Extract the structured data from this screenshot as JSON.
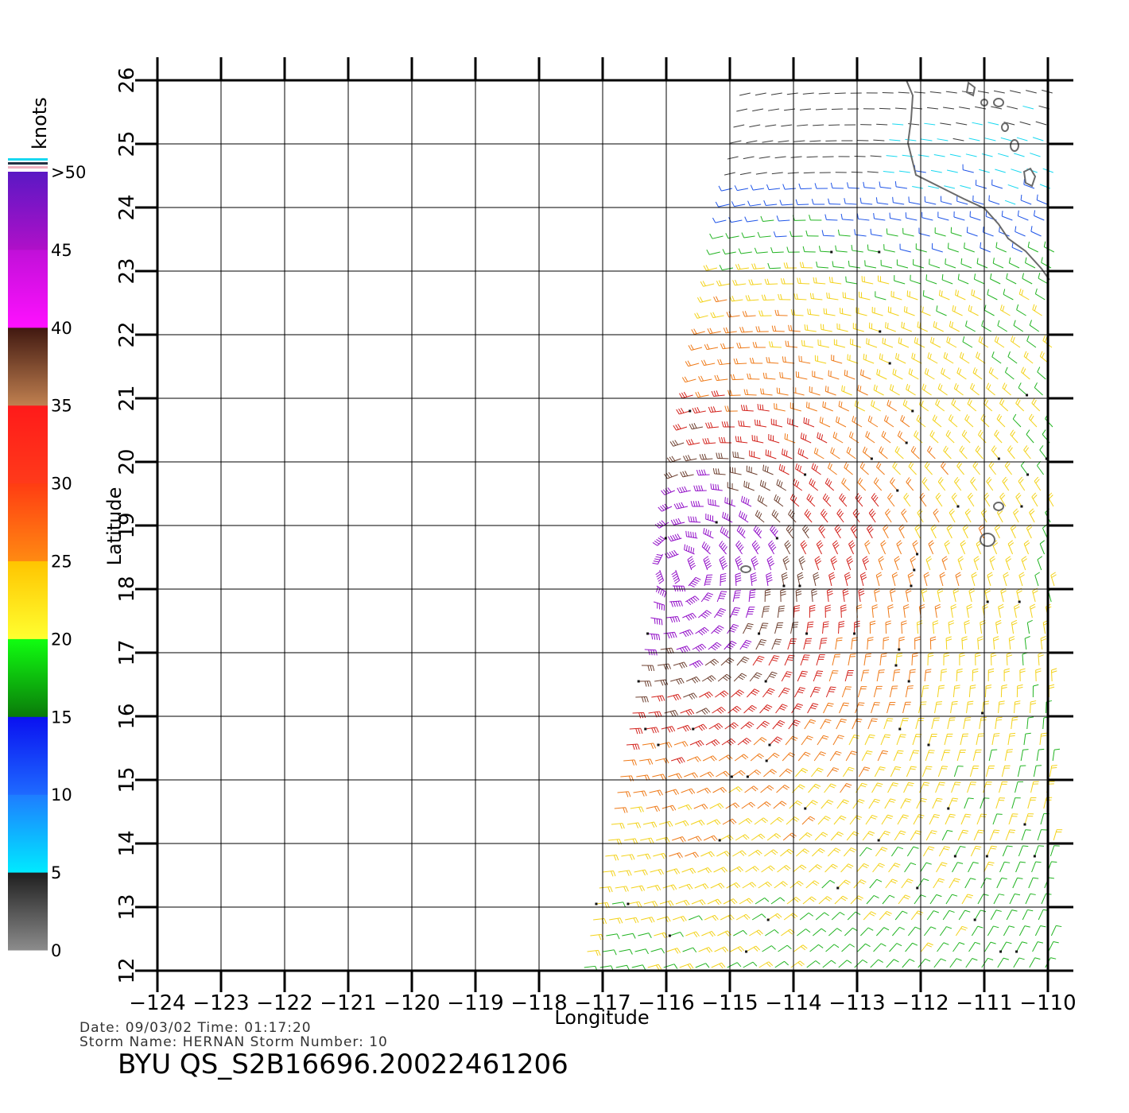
{
  "legend": {
    "unit": "knots",
    "labels": [
      "0",
      "5",
      "10",
      "15",
      "20",
      "25",
      "30",
      "35",
      "40",
      "45",
      ">50"
    ],
    "colors": {
      "calm": "#3a3a3a",
      "light": "#18d8f0",
      "moderate": "#1f55e8",
      "fresh": "#22b422",
      "strong": "#f3d21a",
      "gale": "#ef7a18",
      "storm": "#d3221c",
      "severe": "#6e4030",
      "extreme": "#9310c8"
    }
  },
  "map": {
    "lon_ticks": [
      "-124",
      "-123",
      "-122",
      "-121",
      "-120",
      "-119",
      "-118",
      "-117",
      "-116",
      "-115",
      "-114",
      "-113",
      "-112",
      "-111",
      "-110"
    ],
    "lat_ticks": [
      "12",
      "13",
      "14",
      "15",
      "16",
      "17",
      "18",
      "19",
      "20",
      "21",
      "22",
      "23",
      "24",
      "25",
      "26"
    ],
    "xlabel": "Longitude",
    "ylabel": "Latitude",
    "lon_range": [
      -124,
      -110
    ],
    "lat_range": [
      12,
      26
    ],
    "grid": true,
    "storm_center": {
      "lon": -115.8,
      "lat": 18.3
    }
  },
  "info": {
    "date_line": "Date:  09/03/02   Time:  01:17:20",
    "storm_line": "Storm  Name:  HERNAN    Storm  Number:  10",
    "product": "BYU  QS_S2B16696.20022461206"
  }
}
